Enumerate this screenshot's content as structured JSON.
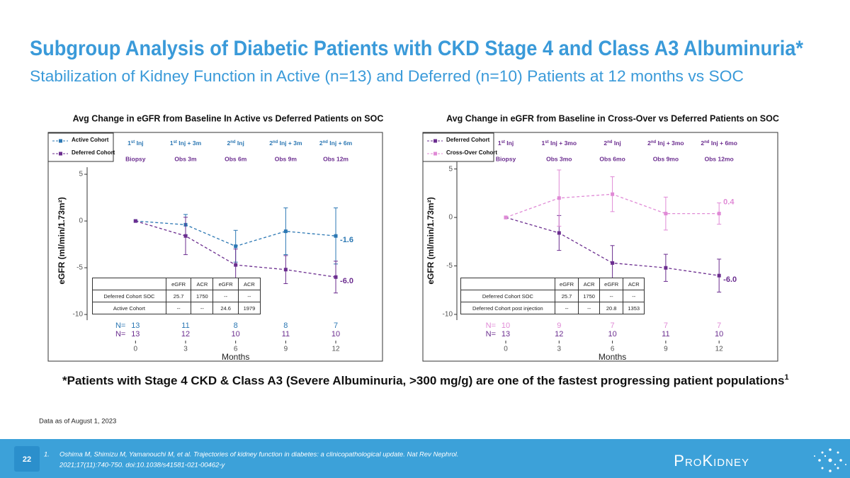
{
  "slide": {
    "title": "Subgroup Analysis of Diabetic Patients with CKD Stage 4 and Class A3 Albuminuria*",
    "subtitle": "Stabilization of Kidney Function in Active (n=13) and Deferred (n=10) Patients at 12 months vs SOC",
    "footnote": "*Patients with Stage 4 CKD & Class A3 (Severe Albuminuria, >300 mg/g) are one of the fastest progressing patient populations",
    "footnote_ref": "1",
    "data_note": "Data as of August 1, 2023",
    "page": "22",
    "reference": {
      "number": "1.",
      "lines": [
        "Oshima M, Shimizu M, Yamanouchi M, et al. Trajectories of kidney function in diabetes: a clinicopathological update. Nat Rev Nephrol.",
        "2021;17(11):740-750. doi:10.1038/s41581-021-00462-y"
      ]
    },
    "logo": "ProKidney"
  },
  "chart_data": [
    {
      "type": "line",
      "title": "Avg Change in eGFR from Baseline In Active vs Deferred Patients on SOC",
      "y_label": "eGFR (ml/min/1.73m²)",
      "x_label": "Months",
      "x": [
        0,
        3,
        6,
        9,
        12
      ],
      "xlim": [
        -2.9,
        14.8
      ],
      "ylim": [
        -13.1,
        9.4
      ],
      "xticks": [
        0,
        3,
        6,
        9,
        12
      ],
      "yticks": [
        -10,
        -5,
        0,
        5
      ],
      "legend": "upper left",
      "series": [
        {
          "name": "Active Cohort",
          "color": "#2b77b3",
          "values": [
            0,
            -0.4,
            -2.7,
            -1.1,
            -1.6
          ],
          "errors": [
            null,
            1.1,
            1.7,
            2.5,
            3.0
          ],
          "value_labels": [
            null,
            null,
            null,
            null,
            "-1.6"
          ]
        },
        {
          "name": "Deferred Cohort",
          "color": "#6b2d8f",
          "values": [
            0,
            -1.6,
            -4.7,
            -5.2,
            -6.0
          ],
          "errors": [
            null,
            2.0,
            1.7,
            1.5,
            1.7
          ],
          "value_labels": [
            null,
            null,
            null,
            null,
            "-6.0"
          ]
        }
      ],
      "milestones": {
        "top": [
          "1st Inj",
          "1st Inj + 3m",
          "2nd Inj",
          "2nd Inj + 3m",
          "2nd Inj + 6m"
        ],
        "top_color": "#2b77b3",
        "bottom": [
          "Biopsy",
          "Obs 3m",
          "Obs 6m",
          "Obs 9m",
          "Obs 12m"
        ],
        "bottom_color": "#6b2d8f"
      },
      "n_rows": [
        {
          "label": "N=",
          "color": "#2b77b3",
          "values": [
            13,
            11,
            8,
            8,
            7
          ]
        },
        {
          "label": "N=",
          "color": "#6b2d8f",
          "values": [
            13,
            12,
            10,
            11,
            10
          ]
        }
      ],
      "table": {
        "header": [
          "eGFR",
          "ACR",
          "eGFR",
          "ACR"
        ],
        "rows": [
          {
            "label": "Deferred Cohort SOC",
            "cells": [
              25.7,
              1750,
              "--",
              "--"
            ]
          },
          {
            "label": "Active Cohort",
            "cells": [
              "--",
              "--",
              24.6,
              1979
            ]
          }
        ]
      }
    },
    {
      "type": "line",
      "title": "Avg Change in eGFR from Baseline in Cross-Over vs Deferred Patients on SOC",
      "y_label": "eGFR (ml/min/1.73m²)",
      "x_label": "Months",
      "x": [
        0,
        3,
        6,
        9,
        12
      ],
      "xlim": [
        -2.75,
        15.3
      ],
      "ylim": [
        -13.0,
        8.7
      ],
      "xticks": [
        0,
        3,
        6,
        9,
        12
      ],
      "yticks": [
        -10,
        -5,
        0,
        5
      ],
      "legend": "upper left",
      "series": [
        {
          "name": "Deferred Cohort",
          "color": "#6b2d8f",
          "values": [
            0,
            -1.6,
            -4.7,
            -5.2,
            -6.0
          ],
          "errors": [
            null,
            1.8,
            1.8,
            1.4,
            1.7
          ],
          "value_labels": [
            null,
            null,
            null,
            null,
            "-6.0"
          ]
        },
        {
          "name": "Cross-Over Cohort",
          "color": "#e08ad6",
          "values": [
            0,
            2.0,
            2.4,
            0.4,
            0.4
          ],
          "errors": [
            null,
            2.9,
            1.8,
            1.7,
            1.1
          ],
          "value_labels": [
            null,
            null,
            null,
            null,
            "0.4"
          ]
        }
      ],
      "milestones": {
        "top": [
          "1st Inj",
          "1st Inj + 3mo",
          "2nd Inj",
          "2nd Inj + 3mo",
          "2nd Inj + 6mo"
        ],
        "top_color": "#6b2d8f",
        "bottom": [
          "Biopsy",
          "Obs 3mo",
          "Obs 6mo",
          "Obs 9mo",
          "Obs 12mo"
        ],
        "bottom_color": "#6b2d8f"
      },
      "n_rows": [
        {
          "label": "N=",
          "color": "#e08ad6",
          "values": [
            10,
            9,
            7,
            7,
            7
          ]
        },
        {
          "label": "N=",
          "color": "#6b2d8f",
          "values": [
            13,
            12,
            10,
            11,
            10
          ]
        }
      ],
      "table": {
        "header": [
          "eGFR",
          "ACR",
          "eGFR",
          "ACR"
        ],
        "rows": [
          {
            "label": "Deferred Cohort SOC",
            "cells": [
              25.7,
              1750,
              "--",
              "--"
            ]
          },
          {
            "label": "Deferred Cohort post injection",
            "cells": [
              "--",
              "--",
              20.8,
              1353
            ]
          }
        ]
      }
    }
  ]
}
